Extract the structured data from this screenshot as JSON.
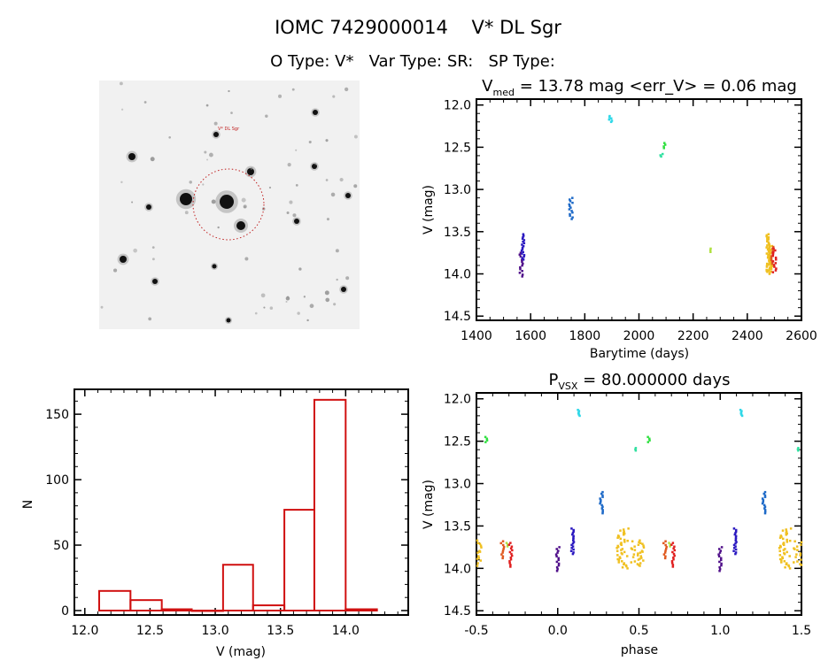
{
  "title": {
    "line1": "IOMC 7429000014    V* DL Sgr",
    "line2": "O Type: V*   Var Type: SR:   SP Type:"
  },
  "image_panel": {
    "target_label": "V* DL Sgr"
  },
  "chart_data": [
    {
      "type": "scatter",
      "name": "light-curve",
      "title_main": "V",
      "title_sub": "med",
      "title_rest": " = 13.78 mag <err_V> = 0.06 mag",
      "xlabel": "Barytime (days)",
      "ylabel": "V (mag)",
      "xlim": [
        1400,
        2600
      ],
      "ylim": [
        14.55,
        11.93
      ],
      "xticks": [
        1400,
        1600,
        1800,
        2000,
        2200,
        2400,
        2600
      ],
      "yticks": [
        "12.0",
        "12.5",
        "13.0",
        "13.5",
        "14.0",
        "14.5"
      ],
      "groups": [
        {
          "t": 1566,
          "mag_min": 13.75,
          "mag_max": 14.03,
          "n": 14,
          "phase": 0.0,
          "color": "#50108a"
        },
        {
          "t": 1572,
          "mag_min": 13.53,
          "mag_max": 13.83,
          "n": 18,
          "phase": 0.09,
          "color": "#2a18c0"
        },
        {
          "t": 1750,
          "mag_min": 13.1,
          "mag_max": 13.35,
          "n": 14,
          "phase": 0.27,
          "color": "#1e6ac8"
        },
        {
          "t": 1897,
          "mag_min": 12.13,
          "mag_max": 12.2,
          "n": 6,
          "phase": 0.13,
          "color": "#30d8e8"
        },
        {
          "t": 2085,
          "mag_min": 12.58,
          "mag_max": 12.61,
          "n": 3,
          "phase": 0.48,
          "color": "#30e0a0"
        },
        {
          "t": 2092,
          "mag_min": 12.45,
          "mag_max": 12.51,
          "n": 4,
          "phase": 0.56,
          "color": "#30e040"
        },
        {
          "t": 2262,
          "mag_min": 13.7,
          "mag_max": 13.74,
          "n": 3,
          "phase": 0.69,
          "color": "#b0e040"
        },
        {
          "t": 2478,
          "mag_min": 13.53,
          "mag_max": 14.0,
          "n": 40,
          "phase": 0.4,
          "color": "#f0c020"
        },
        {
          "t": 2486,
          "mag_min": 13.67,
          "mag_max": 13.97,
          "n": 30,
          "phase": 0.49,
          "color": "#f0c020"
        },
        {
          "t": 2495,
          "mag_min": 13.68,
          "mag_max": 13.88,
          "n": 10,
          "phase": 0.66,
          "color": "#e05a20"
        },
        {
          "t": 2502,
          "mag_min": 13.7,
          "mag_max": 13.98,
          "n": 14,
          "phase": 0.71,
          "color": "#e02020"
        }
      ]
    },
    {
      "type": "scatter",
      "name": "phased-curve",
      "title_main": "P",
      "title_sub": "VSX",
      "title_rest": " = 80.000000 days",
      "xlabel": "phase",
      "ylabel": "V (mag)",
      "xlim": [
        -0.5,
        1.5
      ],
      "ylim": [
        14.55,
        11.93
      ],
      "xticks": [
        "-0.5",
        "0.0",
        "0.5",
        "1.0",
        "1.5"
      ],
      "yticks": [
        "12.0",
        "12.5",
        "13.0",
        "13.5",
        "14.0",
        "14.5"
      ]
    },
    {
      "type": "bar",
      "name": "histogram",
      "xlabel": "V (mag)",
      "ylabel": "N",
      "xlim": [
        11.92,
        14.48
      ],
      "ylim": [
        0,
        169
      ],
      "xticks": [
        "12.0",
        "12.5",
        "13.0",
        "13.5",
        "14.0"
      ],
      "yticks": [
        "0",
        "50",
        "100",
        "150"
      ],
      "bin_edges": [
        12.11,
        12.35,
        12.59,
        12.82,
        13.06,
        13.29,
        13.53,
        13.76,
        14.0,
        14.24
      ],
      "counts": [
        15,
        8,
        1,
        0,
        35,
        4,
        77,
        161,
        1
      ],
      "color": "#d01010"
    }
  ]
}
